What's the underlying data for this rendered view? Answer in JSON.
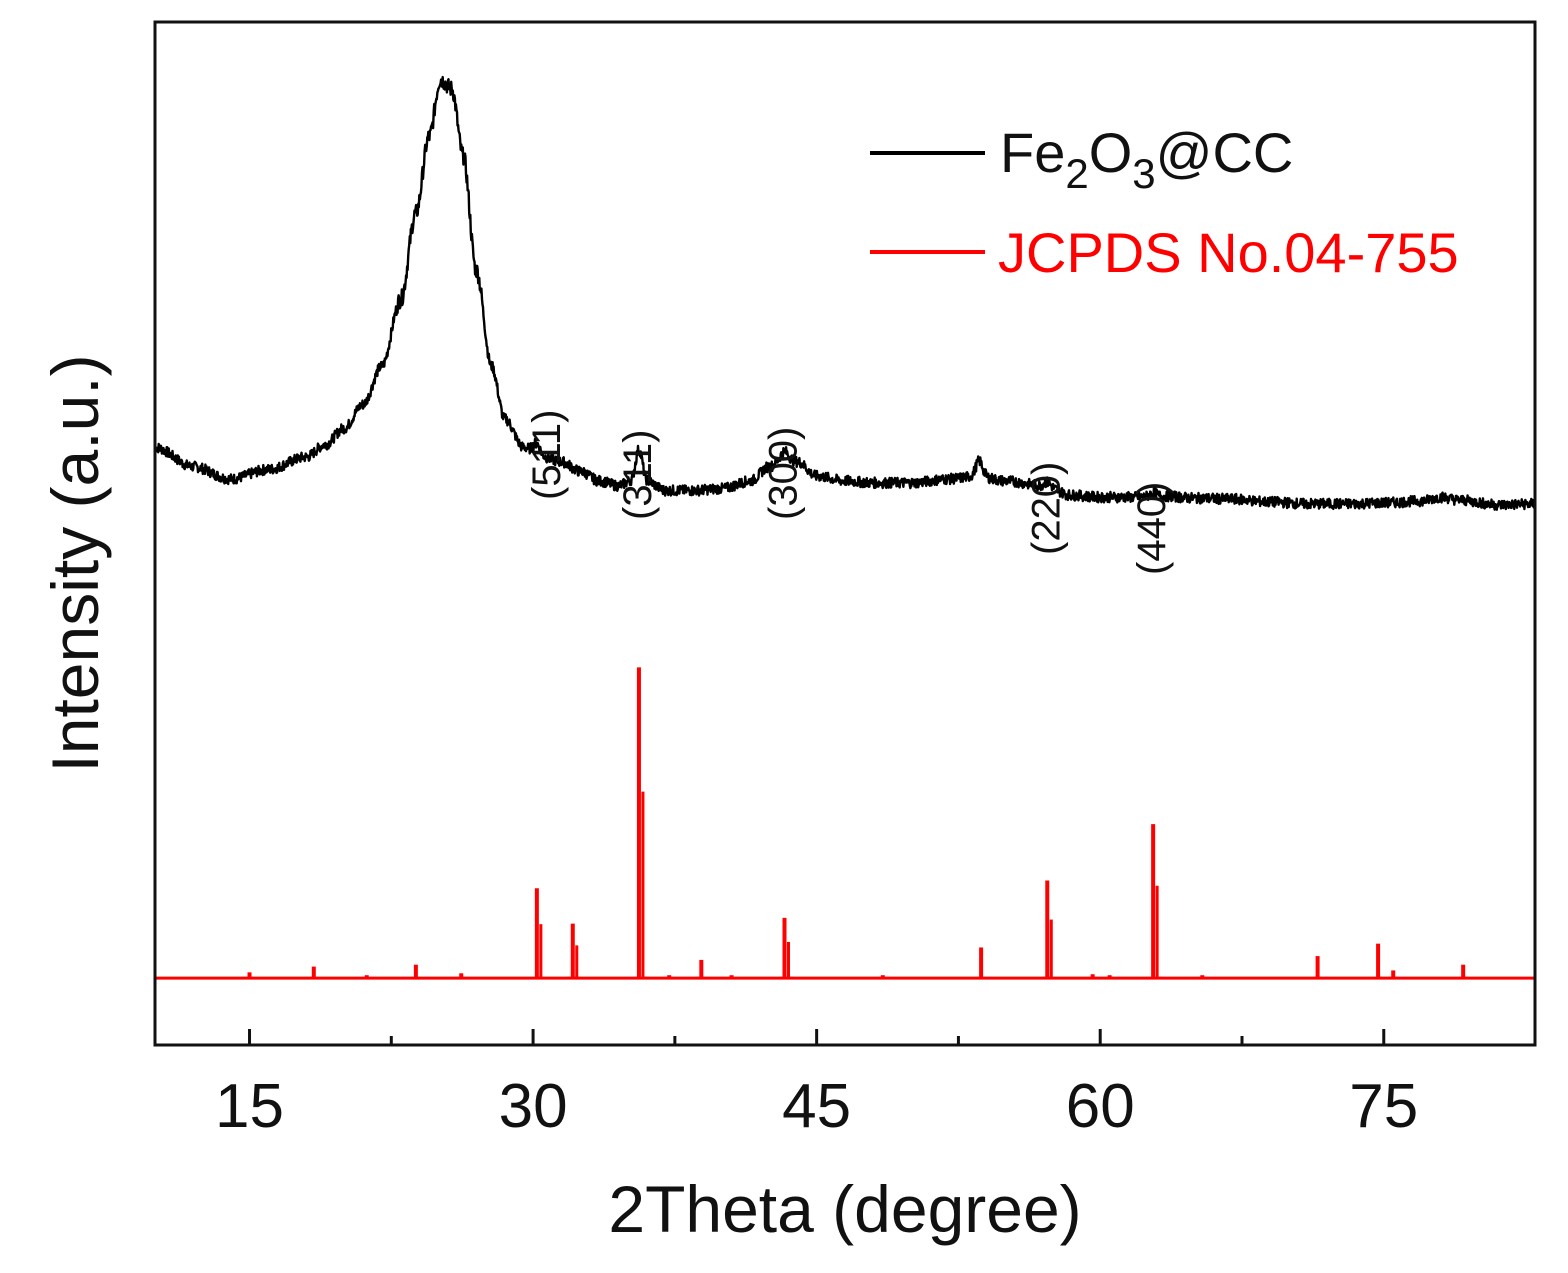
{
  "chart_data": {
    "type": "line",
    "title": "",
    "xlabel": "2Theta (degree)",
    "ylabel": "Intensity (a.u.)",
    "xlim": [
      10,
      83
    ],
    "ylim": [
      -0.07,
      1.0
    ],
    "xticks": [
      15,
      30,
      45,
      60,
      75
    ],
    "xtick_labels": [
      "15",
      "30",
      "45",
      "60",
      "75"
    ],
    "x_minor_ticks": [
      22.5,
      37.5,
      52.5,
      67.5
    ],
    "legend_position": "top-right",
    "colors": {
      "sample": "#000000",
      "reference": "#ff0000"
    },
    "series": [
      {
        "name": "Fe2O3@CC",
        "legend_parts": [
          "Fe",
          "2",
          "O",
          "3",
          "@CC"
        ],
        "color": "#000000",
        "style": "noisy-line",
        "points": [
          [
            10,
            0.555
          ],
          [
            12,
            0.535
          ],
          [
            14,
            0.522
          ],
          [
            16,
            0.532
          ],
          [
            18,
            0.545
          ],
          [
            19,
            0.558
          ],
          [
            20,
            0.575
          ],
          [
            21,
            0.6
          ],
          [
            22,
            0.64
          ],
          [
            23,
            0.71
          ],
          [
            23.8,
            0.8
          ],
          [
            24.5,
            0.88
          ],
          [
            25.1,
            0.94
          ],
          [
            25.7,
            0.93
          ],
          [
            26.3,
            0.86
          ],
          [
            27,
            0.74
          ],
          [
            27.8,
            0.64
          ],
          [
            28.5,
            0.585
          ],
          [
            29.5,
            0.555
          ],
          [
            30.5,
            0.545
          ],
          [
            31.5,
            0.54
          ],
          [
            32.5,
            0.53
          ],
          [
            33.5,
            0.52
          ],
          [
            34.5,
            0.515
          ],
          [
            35.2,
            0.52
          ],
          [
            35.6,
            0.535
          ],
          [
            36,
            0.52
          ],
          [
            37,
            0.51
          ],
          [
            38.5,
            0.51
          ],
          [
            40,
            0.512
          ],
          [
            41.5,
            0.52
          ],
          [
            42.5,
            0.535
          ],
          [
            43.3,
            0.545
          ],
          [
            44,
            0.54
          ],
          [
            45,
            0.525
          ],
          [
            46.5,
            0.52
          ],
          [
            48,
            0.518
          ],
          [
            50,
            0.518
          ],
          [
            52,
            0.522
          ],
          [
            53.5,
            0.525
          ],
          [
            55,
            0.52
          ],
          [
            57,
            0.515
          ],
          [
            58.5,
            0.505
          ],
          [
            60,
            0.503
          ],
          [
            62,
            0.503
          ],
          [
            63.5,
            0.504
          ],
          [
            65,
            0.502
          ],
          [
            67,
            0.501
          ],
          [
            69,
            0.498
          ],
          [
            71,
            0.496
          ],
          [
            73,
            0.496
          ],
          [
            75,
            0.497
          ],
          [
            77,
            0.499
          ],
          [
            78,
            0.503
          ],
          [
            79,
            0.5
          ],
          [
            81,
            0.495
          ],
          [
            83,
            0.496
          ]
        ],
        "sharp_peaks": [
          {
            "x": 30.2,
            "h": 0.012
          },
          {
            "x": 35.6,
            "h": 0.018
          },
          {
            "x": 43.3,
            "h": 0.006
          },
          {
            "x": 53.6,
            "h": 0.016
          },
          {
            "x": 57.2,
            "h": 0.004
          },
          {
            "x": 62.8,
            "h": 0.004
          }
        ]
      },
      {
        "name": "JCPDS No.04-755",
        "legend_text": "JCPDS No.04-755",
        "color": "#ff0000",
        "style": "stick",
        "baseline": 0.0,
        "peaks": [
          {
            "x": 15.0,
            "h": 0.006
          },
          {
            "x": 18.4,
            "h": 0.012
          },
          {
            "x": 21.2,
            "h": 0.003
          },
          {
            "x": 23.8,
            "h": 0.014
          },
          {
            "x": 26.2,
            "h": 0.005
          },
          {
            "x": 30.2,
            "h": 0.094
          },
          {
            "x": 32.1,
            "h": 0.057
          },
          {
            "x": 35.6,
            "h": 0.325
          },
          {
            "x": 37.2,
            "h": 0.003
          },
          {
            "x": 38.9,
            "h": 0.019
          },
          {
            "x": 40.5,
            "h": 0.003
          },
          {
            "x": 43.3,
            "h": 0.063
          },
          {
            "x": 48.5,
            "h": 0.003
          },
          {
            "x": 53.7,
            "h": 0.032
          },
          {
            "x": 57.2,
            "h": 0.102
          },
          {
            "x": 59.6,
            "h": 0.004
          },
          {
            "x": 60.5,
            "h": 0.003
          },
          {
            "x": 62.8,
            "h": 0.161
          },
          {
            "x": 65.4,
            "h": 0.003
          },
          {
            "x": 71.5,
            "h": 0.023
          },
          {
            "x": 74.7,
            "h": 0.036
          },
          {
            "x": 75.5,
            "h": 0.008
          },
          {
            "x": 79.2,
            "h": 0.014
          }
        ]
      }
    ],
    "annotations": [
      {
        "text": "(511)",
        "x": 30.8
      },
      {
        "text": "(311)",
        "x": 35.6
      },
      {
        "text": "(300)",
        "x": 43.3
      },
      {
        "text": "(220)",
        "x": 57.2
      },
      {
        "text": "(440)",
        "x": 62.8
      }
    ]
  }
}
